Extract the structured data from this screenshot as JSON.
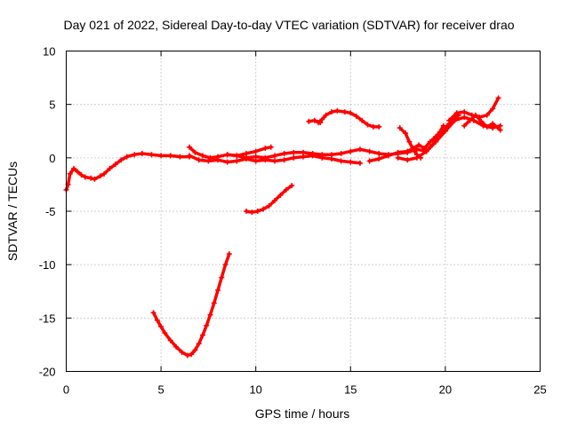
{
  "chart_data": {
    "type": "scatter",
    "title": "Day 021 of 2022, Sidereal Day-to-day VTEC variation (SDTVAR) for receiver drao",
    "xlabel": "GPS time / hours",
    "ylabel": "SDTVAR / TECUs",
    "xlim": [
      0,
      25
    ],
    "ylim": [
      -20,
      10
    ],
    "xticks": [
      0,
      5,
      10,
      15,
      20,
      25
    ],
    "yticks": [
      -20,
      -15,
      -10,
      -5,
      0,
      5,
      10
    ],
    "xtick_labels": [
      "0",
      "5",
      "10",
      "15",
      "20",
      "25"
    ],
    "ytick_labels": [
      "-20",
      "-15",
      "-10",
      "-5",
      "0",
      "5",
      "10"
    ],
    "grid": true,
    "color": "#ff0000",
    "series": [
      {
        "name": "track-1",
        "points": [
          [
            0.0,
            -3.0
          ],
          [
            0.1,
            -2.5
          ],
          [
            0.2,
            -1.5
          ],
          [
            0.4,
            -1.0
          ],
          [
            0.6,
            -1.3
          ],
          [
            0.8,
            -1.6
          ],
          [
            1.0,
            -1.8
          ],
          [
            1.3,
            -1.9
          ],
          [
            1.5,
            -2.0
          ],
          [
            1.8,
            -1.7
          ],
          [
            2.0,
            -1.5
          ],
          [
            2.3,
            -1.0
          ],
          [
            2.6,
            -0.6
          ],
          [
            2.9,
            -0.2
          ],
          [
            3.2,
            0.1
          ],
          [
            3.6,
            0.3
          ],
          [
            4.0,
            0.4
          ],
          [
            4.5,
            0.3
          ],
          [
            5.0,
            0.2
          ],
          [
            5.5,
            0.2
          ],
          [
            6.0,
            0.1
          ],
          [
            6.5,
            0.1
          ]
        ]
      },
      {
        "name": "track-2",
        "points": [
          [
            6.5,
            1.0
          ],
          [
            6.8,
            0.5
          ],
          [
            7.2,
            0.2
          ],
          [
            7.6,
            0.0
          ],
          [
            8.0,
            0.1
          ],
          [
            8.5,
            0.3
          ],
          [
            9.0,
            0.2
          ],
          [
            9.5,
            0.0
          ],
          [
            10.0,
            0.1
          ],
          [
            10.5,
            0.0
          ],
          [
            11.0,
            0.2
          ],
          [
            11.5,
            0.4
          ],
          [
            12.0,
            0.5
          ],
          [
            12.5,
            0.5
          ],
          [
            13.0,
            0.4
          ],
          [
            13.5,
            0.3
          ],
          [
            14.0,
            0.3
          ],
          [
            14.5,
            0.4
          ],
          [
            15.0,
            0.6
          ],
          [
            15.5,
            0.8
          ],
          [
            16.0,
            0.6
          ],
          [
            16.5,
            0.4
          ],
          [
            17.0,
            0.3
          ],
          [
            17.5,
            0.4
          ],
          [
            18.0,
            0.5
          ],
          [
            18.5,
            0.8
          ],
          [
            19.0,
            0.6
          ]
        ]
      },
      {
        "name": "track-3",
        "points": [
          [
            6.5,
            0.2
          ],
          [
            7.0,
            -0.2
          ],
          [
            7.5,
            -0.3
          ],
          [
            8.0,
            -0.2
          ],
          [
            8.5,
            -0.4
          ],
          [
            9.0,
            -0.3
          ],
          [
            9.5,
            -0.1
          ],
          [
            10.0,
            -0.3
          ],
          [
            10.5,
            -0.2
          ],
          [
            11.0,
            -0.3
          ],
          [
            11.5,
            -0.2
          ],
          [
            12.0,
            0.0
          ],
          [
            12.5,
            0.1
          ],
          [
            13.0,
            0.2
          ],
          [
            13.5,
            0.0
          ],
          [
            14.0,
            -0.1
          ],
          [
            14.5,
            -0.3
          ],
          [
            15.0,
            -0.4
          ],
          [
            15.5,
            -0.5
          ]
        ]
      },
      {
        "name": "track-4",
        "points": [
          [
            8.5,
            0.3
          ],
          [
            9.0,
            0.2
          ],
          [
            9.5,
            0.4
          ],
          [
            10.0,
            0.6
          ],
          [
            10.5,
            0.9
          ],
          [
            10.8,
            1.0
          ]
        ]
      },
      {
        "name": "track-5",
        "points": [
          [
            9.5,
            -5.0
          ],
          [
            9.8,
            -5.1
          ],
          [
            10.1,
            -5.0
          ],
          [
            10.4,
            -4.8
          ],
          [
            10.7,
            -4.5
          ],
          [
            11.0,
            -4.0
          ],
          [
            11.3,
            -3.5
          ],
          [
            11.6,
            -3.0
          ],
          [
            11.9,
            -2.6
          ]
        ]
      },
      {
        "name": "track-6",
        "points": [
          [
            4.6,
            -14.5
          ],
          [
            4.8,
            -15.2
          ],
          [
            5.0,
            -15.8
          ],
          [
            5.2,
            -16.4
          ],
          [
            5.5,
            -17.1
          ],
          [
            5.8,
            -17.7
          ],
          [
            6.1,
            -18.2
          ],
          [
            6.4,
            -18.5
          ],
          [
            6.6,
            -18.4
          ],
          [
            6.8,
            -18.0
          ],
          [
            7.0,
            -17.4
          ],
          [
            7.2,
            -16.6
          ],
          [
            7.4,
            -15.7
          ],
          [
            7.6,
            -14.7
          ],
          [
            7.8,
            -13.6
          ],
          [
            8.0,
            -12.4
          ],
          [
            8.2,
            -11.2
          ],
          [
            8.4,
            -10.0
          ],
          [
            8.6,
            -9.0
          ]
        ]
      },
      {
        "name": "track-7",
        "points": [
          [
            13.3,
            3.3
          ],
          [
            13.5,
            3.6
          ],
          [
            13.7,
            4.0
          ],
          [
            14.0,
            4.3
          ],
          [
            14.3,
            4.4
          ],
          [
            14.7,
            4.3
          ],
          [
            15.0,
            4.2
          ],
          [
            15.3,
            3.9
          ],
          [
            15.6,
            3.5
          ],
          [
            15.9,
            3.1
          ],
          [
            16.2,
            2.9
          ],
          [
            16.5,
            2.9
          ]
        ]
      },
      {
        "name": "track-8",
        "points": [
          [
            12.8,
            3.4
          ],
          [
            13.1,
            3.5
          ],
          [
            13.4,
            3.3
          ]
        ]
      },
      {
        "name": "track-9",
        "points": [
          [
            16.0,
            -0.3
          ],
          [
            16.5,
            -0.1
          ],
          [
            17.0,
            0.2
          ],
          [
            17.5,
            0.5
          ],
          [
            18.0,
            0.6
          ],
          [
            18.3,
            0.9
          ],
          [
            18.6,
            1.2
          ],
          [
            18.9,
            0.9
          ],
          [
            19.2,
            1.5
          ],
          [
            19.5,
            2.0
          ],
          [
            19.8,
            2.5
          ],
          [
            20.1,
            3.0
          ],
          [
            20.4,
            3.6
          ],
          [
            20.7,
            4.0
          ]
        ]
      },
      {
        "name": "track-10",
        "points": [
          [
            17.5,
            0.0
          ],
          [
            18.0,
            -0.2
          ],
          [
            18.5,
            0.0
          ],
          [
            19.0,
            0.6
          ],
          [
            19.5,
            1.5
          ],
          [
            20.0,
            2.5
          ],
          [
            20.5,
            3.5
          ],
          [
            21.0,
            3.8
          ],
          [
            21.5,
            3.5
          ],
          [
            22.0,
            3.0
          ],
          [
            22.5,
            2.8
          ],
          [
            22.9,
            3.0
          ]
        ]
      },
      {
        "name": "track-11",
        "points": [
          [
            19.2,
            1.0
          ],
          [
            19.5,
            1.6
          ],
          [
            19.7,
            2.4
          ],
          [
            19.9,
            3.0
          ]
        ]
      },
      {
        "name": "track-12",
        "points": [
          [
            17.6,
            2.8
          ],
          [
            17.9,
            2.3
          ],
          [
            18.1,
            1.5
          ],
          [
            18.3,
            0.8
          ],
          [
            18.5,
            0.3
          ],
          [
            18.7,
            0.0
          ]
        ]
      },
      {
        "name": "track-13",
        "points": [
          [
            20.2,
            3.5
          ],
          [
            20.6,
            4.2
          ],
          [
            21.0,
            4.3
          ],
          [
            21.4,
            4.0
          ],
          [
            21.8,
            3.8
          ],
          [
            22.2,
            4.0
          ],
          [
            22.5,
            4.6
          ],
          [
            22.8,
            5.6
          ]
        ]
      },
      {
        "name": "track-14",
        "points": [
          [
            21.0,
            3.0
          ],
          [
            21.3,
            3.5
          ],
          [
            21.6,
            4.0
          ],
          [
            21.9,
            3.4
          ],
          [
            22.2,
            2.9
          ],
          [
            22.5,
            3.2
          ],
          [
            22.9,
            2.6
          ]
        ]
      }
    ]
  }
}
